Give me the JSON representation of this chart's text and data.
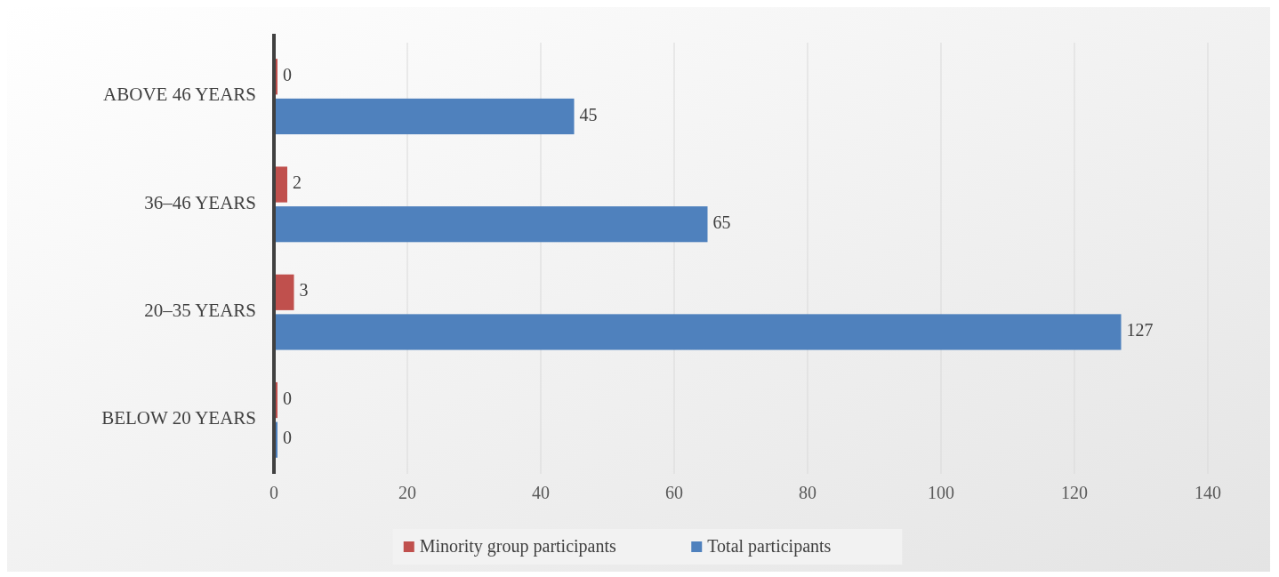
{
  "chart_data": {
    "type": "bar",
    "orientation": "horizontal",
    "categories": [
      "ABOVE 46 YEARS",
      "36–46 YEARS",
      "20–35 YEARS",
      "BELOW 20 YEARS"
    ],
    "series": [
      {
        "name": "Minority group participants",
        "color": "#c0504d",
        "values": [
          0,
          2,
          3,
          0
        ]
      },
      {
        "name": "Total participants",
        "color": "#4f81bd",
        "values": [
          45,
          65,
          127,
          0
        ]
      }
    ],
    "xlim": [
      0,
      140
    ],
    "xticks": [
      0,
      20,
      40,
      60,
      80,
      100,
      120,
      140
    ],
    "grid": "x",
    "legend": "bottom",
    "data_labels": true
  }
}
